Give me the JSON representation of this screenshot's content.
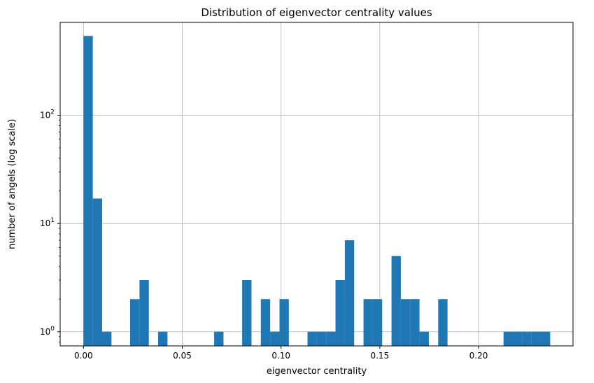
{
  "chart_data": {
    "type": "bar",
    "title": "Distribution of eigenvector centrality values",
    "xlabel": "eigenvector centrality",
    "ylabel": "number of angels (log scale)",
    "y_scale": "log",
    "grid": true,
    "bar_color": "#1f77b4",
    "xlim": [
      -0.0118,
      0.2478
    ],
    "ylim": [
      0.74,
      720
    ],
    "x_ticks": [
      {
        "value": 0.0,
        "label": "0.00"
      },
      {
        "value": 0.05,
        "label": "0.05"
      },
      {
        "value": 0.1,
        "label": "0.10"
      },
      {
        "value": 0.15,
        "label": "0.15"
      },
      {
        "value": 0.2,
        "label": "0.20"
      }
    ],
    "y_ticks": [
      {
        "value": 1,
        "base": "10",
        "exp": "0"
      },
      {
        "value": 10,
        "base": "10",
        "exp": "1"
      },
      {
        "value": 100,
        "base": "10",
        "exp": "2"
      }
    ],
    "bin_start": 0.0,
    "bin_width": 0.004725,
    "counts": [
      540,
      17,
      1,
      0,
      0,
      2,
      3,
      0,
      1,
      0,
      0,
      0,
      0,
      0,
      1,
      0,
      0,
      3,
      0,
      2,
      1,
      2,
      0,
      0,
      1,
      1,
      1,
      3,
      7,
      0,
      2,
      2,
      0,
      5,
      2,
      2,
      1,
      0,
      2,
      0,
      0,
      0,
      0,
      0,
      0,
      1,
      1,
      1,
      1,
      1
    ]
  }
}
